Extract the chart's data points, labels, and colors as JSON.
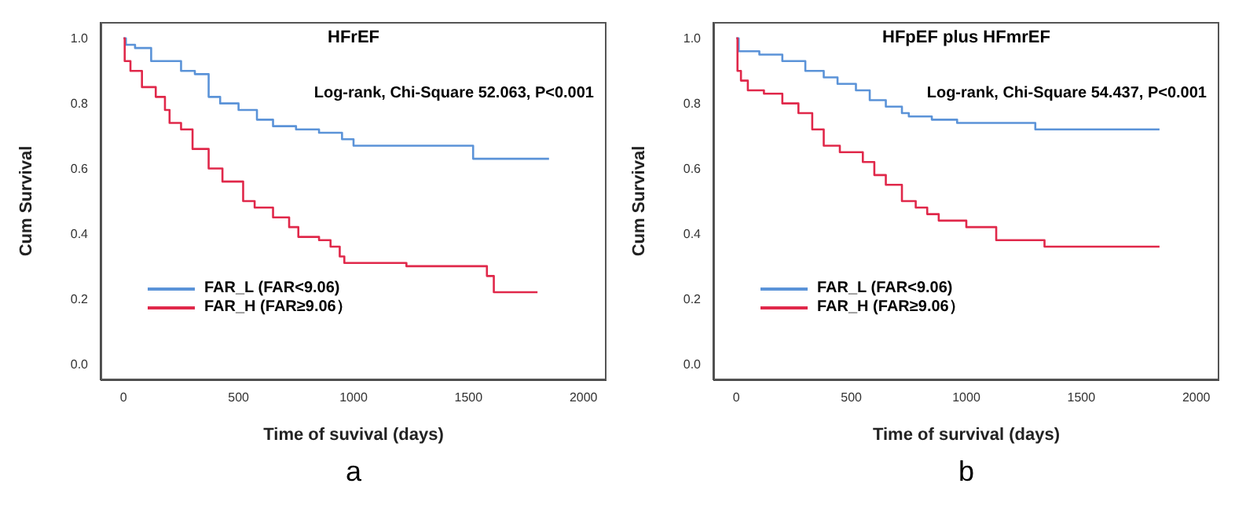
{
  "chart_data": [
    {
      "type": "step",
      "title": "HFrEF",
      "xlabel": "Time of suvival (days)",
      "ylabel": "Cum Survival",
      "annotations": [
        "Log-rank, Chi-Square 52.063, P<0.001",
        "a"
      ],
      "xlim": [
        -100,
        2100
      ],
      "xticks": [
        0,
        500,
        1000,
        1500,
        2000
      ],
      "ylim": [
        -0.05,
        1.05
      ],
      "yticks": [
        {
          "value": 0,
          "label": "0.0"
        },
        {
          "value": 0.2,
          "label": "0.2"
        },
        {
          "value": 0.4,
          "label": "0.4"
        },
        {
          "value": 0.6,
          "label": "0.6"
        },
        {
          "value": 0.8,
          "label": "0.8"
        },
        {
          "value": 1,
          "label": "1.0"
        }
      ],
      "legend": "bottom left",
      "grid": false,
      "series": [
        {
          "name": "FAR_L (FAR<9.06)",
          "color": "#5b93d8",
          "x": [
            0,
            10,
            50,
            120,
            250,
            310,
            370,
            420,
            500,
            580,
            650,
            750,
            850,
            950,
            1000,
            1520,
            1850
          ],
          "values": [
            1.0,
            0.98,
            0.97,
            0.93,
            0.9,
            0.89,
            0.82,
            0.8,
            0.78,
            0.75,
            0.73,
            0.72,
            0.71,
            0.69,
            0.67,
            0.63,
            0.63
          ]
        },
        {
          "name": "FAR_H (FAR≥9.06）",
          "color": "#e0284a",
          "x": [
            0,
            5,
            30,
            80,
            140,
            180,
            200,
            250,
            300,
            370,
            430,
            520,
            570,
            650,
            720,
            760,
            850,
            900,
            940,
            960,
            1230,
            1580,
            1610,
            1800
          ],
          "values": [
            1.0,
            0.93,
            0.9,
            0.85,
            0.82,
            0.78,
            0.74,
            0.72,
            0.66,
            0.6,
            0.56,
            0.5,
            0.48,
            0.45,
            0.42,
            0.39,
            0.38,
            0.36,
            0.33,
            0.31,
            0.3,
            0.27,
            0.22,
            0.22
          ]
        }
      ]
    },
    {
      "type": "step",
      "title": "HFpEF plus HFmrEF",
      "xlabel": "Time of survival (days)",
      "ylabel": "Cum Survival",
      "annotations": [
        "Log-rank, Chi-Square 54.437, P<0.001",
        "b"
      ],
      "xlim": [
        -100,
        2100
      ],
      "xticks": [
        0,
        500,
        1000,
        1500,
        2000
      ],
      "ylim": [
        -0.05,
        1.05
      ],
      "yticks": [
        {
          "value": 0,
          "label": "0.0"
        },
        {
          "value": 0.2,
          "label": "0.2"
        },
        {
          "value": 0.4,
          "label": "0.4"
        },
        {
          "value": 0.6,
          "label": "0.6"
        },
        {
          "value": 0.8,
          "label": "0.8"
        },
        {
          "value": 1,
          "label": "1.0"
        }
      ],
      "legend": "bottom left",
      "grid": false,
      "series": [
        {
          "name": "FAR_L (FAR<9.06)",
          "color": "#5b93d8",
          "x": [
            0,
            10,
            100,
            200,
            300,
            380,
            440,
            520,
            580,
            650,
            720,
            750,
            850,
            960,
            1300,
            1840
          ],
          "values": [
            1.0,
            0.96,
            0.95,
            0.93,
            0.9,
            0.88,
            0.86,
            0.84,
            0.81,
            0.79,
            0.77,
            0.76,
            0.75,
            0.74,
            0.72,
            0.72
          ]
        },
        {
          "name": "FAR_H (FAR≥9.06）",
          "color": "#e0284a",
          "x": [
            0,
            5,
            20,
            50,
            120,
            200,
            270,
            330,
            380,
            450,
            550,
            600,
            650,
            720,
            780,
            830,
            880,
            1000,
            1130,
            1340,
            1840
          ],
          "values": [
            1.0,
            0.9,
            0.87,
            0.84,
            0.83,
            0.8,
            0.77,
            0.72,
            0.67,
            0.65,
            0.62,
            0.58,
            0.55,
            0.5,
            0.48,
            0.46,
            0.44,
            0.42,
            0.38,
            0.36,
            0.36
          ]
        }
      ]
    }
  ]
}
